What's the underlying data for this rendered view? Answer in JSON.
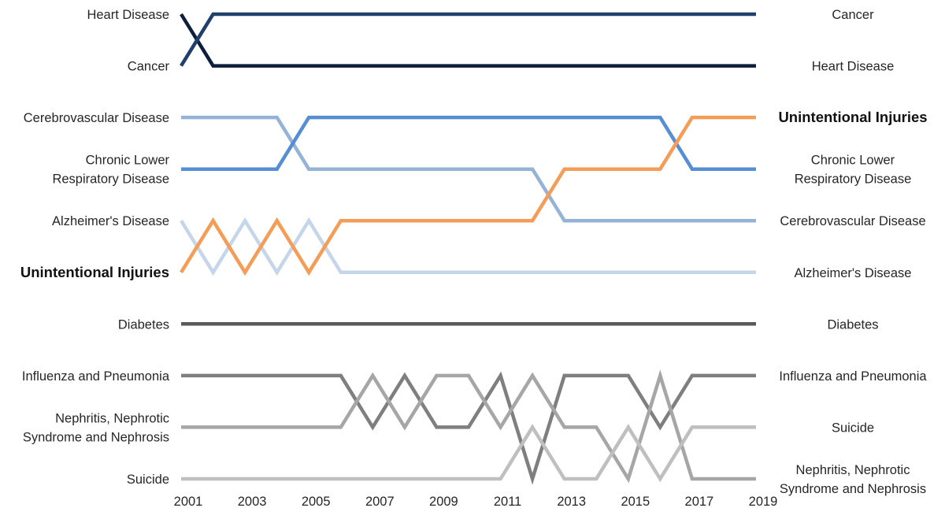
{
  "chart_data": {
    "type": "line",
    "subtype": "bump",
    "title": "",
    "xlabel": "",
    "ylabel": "",
    "x": [
      2001,
      2002,
      2003,
      2004,
      2005,
      2006,
      2007,
      2008,
      2009,
      2010,
      2011,
      2012,
      2013,
      2014,
      2015,
      2016,
      2017,
      2018,
      2019
    ],
    "x_ticks": [
      "2001",
      "2003",
      "2005",
      "2007",
      "2009",
      "2011",
      "2013",
      "2015",
      "2017",
      "2019"
    ],
    "y_axis": "rank (1 = top), inverted",
    "ylim": [
      1,
      10
    ],
    "grid": false,
    "legend": "none",
    "series": [
      {
        "name": "Heart Disease",
        "color": "#0d1f3c",
        "ranks": [
          1,
          2,
          2,
          2,
          2,
          2,
          2,
          2,
          2,
          2,
          2,
          2,
          2,
          2,
          2,
          2,
          2,
          2,
          2
        ]
      },
      {
        "name": "Cancer",
        "color": "#1f3f6e",
        "ranks": [
          2,
          1,
          1,
          1,
          1,
          1,
          1,
          1,
          1,
          1,
          1,
          1,
          1,
          1,
          1,
          1,
          1,
          1,
          1
        ]
      },
      {
        "name": "Cerebrovascular Disease",
        "color": "#95b3d7",
        "ranks": [
          3,
          3,
          3,
          3,
          4,
          4,
          4,
          4,
          4,
          4,
          4,
          4,
          5,
          5,
          5,
          5,
          5,
          5,
          5
        ]
      },
      {
        "name": "Chronic Lower Respiratory Disease",
        "color": "#558ed5",
        "ranks": [
          4,
          4,
          4,
          4,
          3,
          3,
          3,
          3,
          3,
          3,
          3,
          3,
          3,
          3,
          3,
          3,
          4,
          4,
          4
        ]
      },
      {
        "name": "Alzheimer's Disease",
        "color": "#c6d6ea",
        "ranks": [
          5,
          6,
          5,
          6,
          5,
          6,
          6,
          6,
          6,
          6,
          6,
          6,
          6,
          6,
          6,
          6,
          6,
          6,
          6
        ]
      },
      {
        "name": "Unintentional Injuries",
        "color": "#f59d56",
        "bold": true,
        "ranks": [
          6,
          5,
          6,
          5,
          6,
          5,
          5,
          5,
          5,
          5,
          5,
          5,
          4,
          4,
          4,
          4,
          3,
          3,
          3
        ]
      },
      {
        "name": "Diabetes",
        "color": "#595959",
        "ranks": [
          7,
          7,
          7,
          7,
          7,
          7,
          7,
          7,
          7,
          7,
          7,
          7,
          7,
          7,
          7,
          7,
          7,
          7,
          7
        ]
      },
      {
        "name": "Influenza and Pneumonia",
        "color": "#7f7f7f",
        "ranks": [
          8,
          8,
          8,
          8,
          8,
          8,
          9,
          8,
          9,
          9,
          8,
          10,
          8,
          8,
          8,
          9,
          8,
          8,
          8
        ]
      },
      {
        "name": "Nephritis, Nephrotic Syndrome and Nephrosis",
        "color": "#a6a6a6",
        "ranks": [
          9,
          9,
          9,
          9,
          9,
          9,
          8,
          9,
          8,
          8,
          9,
          8,
          9,
          9,
          10,
          8,
          10,
          10,
          10
        ]
      },
      {
        "name": "Suicide",
        "color": "#bfbfbf",
        "ranks": [
          10,
          10,
          10,
          10,
          10,
          10,
          10,
          10,
          10,
          10,
          10,
          9,
          10,
          10,
          9,
          10,
          9,
          9,
          9
        ]
      }
    ],
    "left_labels": [
      {
        "text": "Heart Disease",
        "rank": 1
      },
      {
        "text": "Cancer",
        "rank": 2
      },
      {
        "text": "Cerebrovascular Disease",
        "rank": 3
      },
      {
        "lines": [
          "Chronic Lower",
          "Respiratory Disease"
        ],
        "rank": 4
      },
      {
        "text": "Alzheimer's Disease",
        "rank": 5
      },
      {
        "text": "Unintentional Injuries",
        "rank": 6,
        "bold": true
      },
      {
        "text": "Diabetes",
        "rank": 7
      },
      {
        "text": "Influenza and Pneumonia",
        "rank": 8
      },
      {
        "lines": [
          "Nephritis, Nephrotic",
          "Syndrome and Nephrosis"
        ],
        "rank": 9
      },
      {
        "text": "Suicide",
        "rank": 10
      }
    ],
    "right_labels": [
      {
        "text": "Cancer",
        "rank": 1
      },
      {
        "text": "Heart Disease",
        "rank": 2
      },
      {
        "text": "Unintentional Injuries",
        "rank": 3,
        "bold": true
      },
      {
        "lines": [
          "Chronic Lower",
          "Respiratory Disease"
        ],
        "rank": 4
      },
      {
        "text": "Cerebrovascular Disease",
        "rank": 5
      },
      {
        "text": "Alzheimer's Disease",
        "rank": 6
      },
      {
        "text": "Diabetes",
        "rank": 7
      },
      {
        "text": "Influenza and Pneumonia",
        "rank": 8
      },
      {
        "text": "Suicide",
        "rank": 9
      },
      {
        "lines": [
          "Nephritis, Nephrotic",
          "Syndrome and Nephrosis"
        ],
        "rank": 10
      }
    ]
  }
}
